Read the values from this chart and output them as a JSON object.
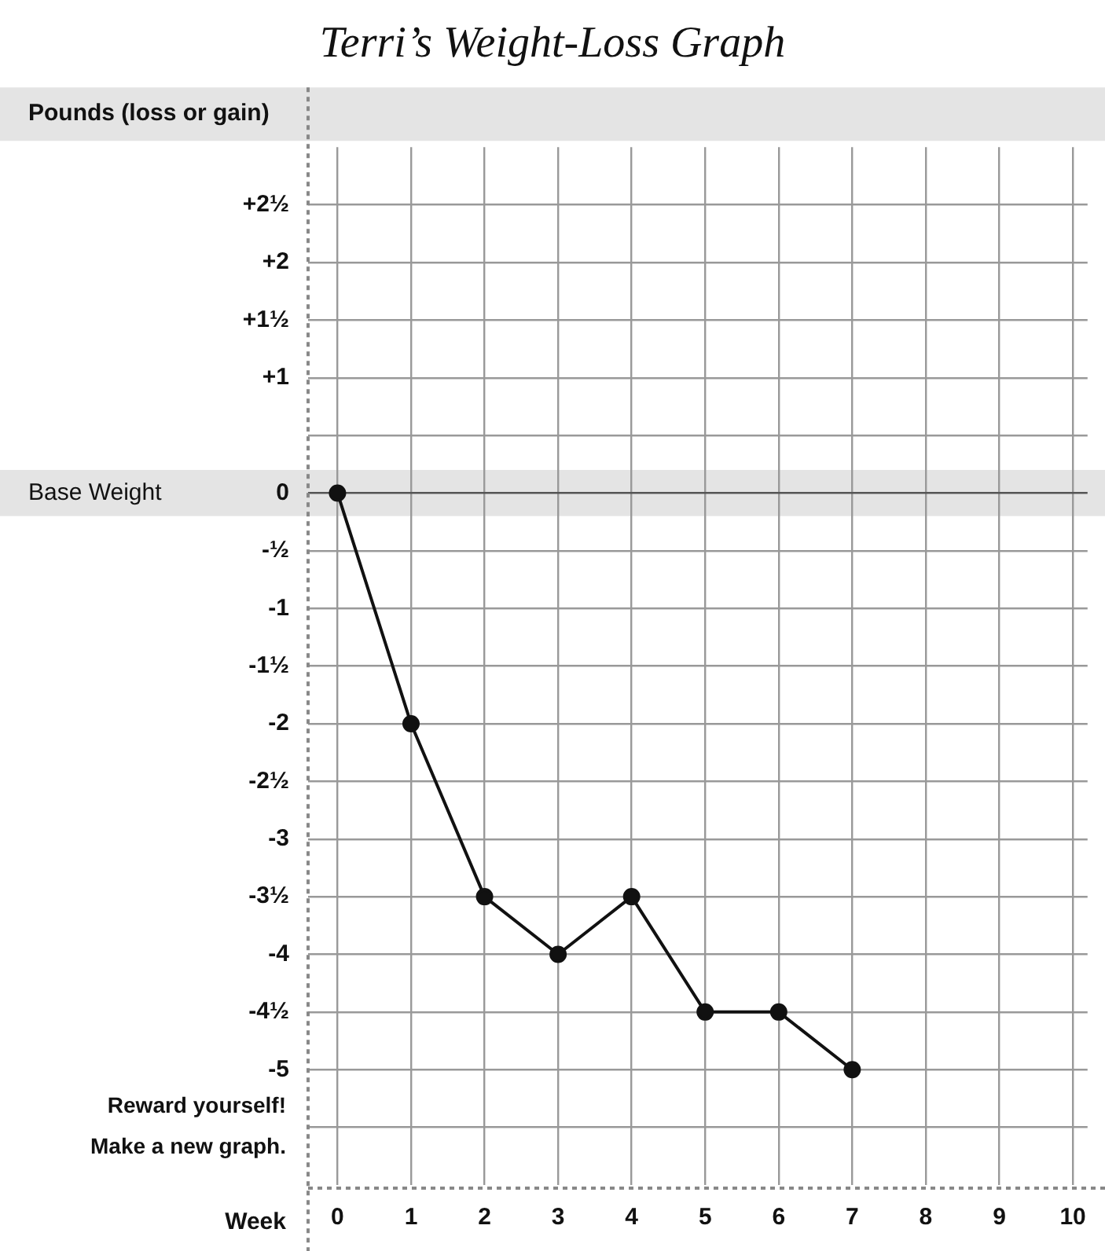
{
  "chart_data": {
    "type": "line",
    "title": "Terri’s Weight-Loss Graph",
    "ylabel": "Pounds (loss or gain)",
    "xlabel": "Week",
    "x": [
      0,
      1,
      2,
      3,
      4,
      5,
      6,
      7
    ],
    "series": [
      {
        "color": "#111111",
        "values": [
          0,
          -2,
          -3.5,
          -4,
          -3.5,
          -4.5,
          -4.5,
          -5
        ]
      }
    ],
    "xlim": [
      -0.4,
      10.2
    ],
    "xticks": [
      0,
      1,
      2,
      3,
      4,
      5,
      6,
      7,
      8,
      9,
      10
    ],
    "ylim": [
      -6,
      3
    ],
    "yticks": [
      {
        "value": 2.5,
        "label": "+2½"
      },
      {
        "value": 2,
        "label": "+2"
      },
      {
        "value": 1.5,
        "label": "+1½"
      },
      {
        "value": 1,
        "label": "+1"
      },
      {
        "value": 0.5,
        "label": null
      },
      0,
      {
        "value": -0.5,
        "label": "-½"
      },
      -1,
      {
        "value": -1.5,
        "label": "-1½"
      },
      -2,
      {
        "value": -2.5,
        "label": "-2½"
      },
      -3,
      {
        "value": -3.5,
        "label": "-3½"
      },
      -4,
      {
        "value": -4.5,
        "label": "-4½"
      },
      -5,
      {
        "value": -5.5,
        "label": null
      }
    ],
    "bands": [
      {
        "axis": "y",
        "from": -0.2,
        "to": 0.2,
        "label": "Base Weight",
        "color": "#e4e4e4"
      }
    ],
    "annotations": [
      "Reward yourself!",
      "Make a new graph."
    ],
    "grid": true,
    "marker": "circle",
    "line_style": "solid",
    "legend": false
  }
}
